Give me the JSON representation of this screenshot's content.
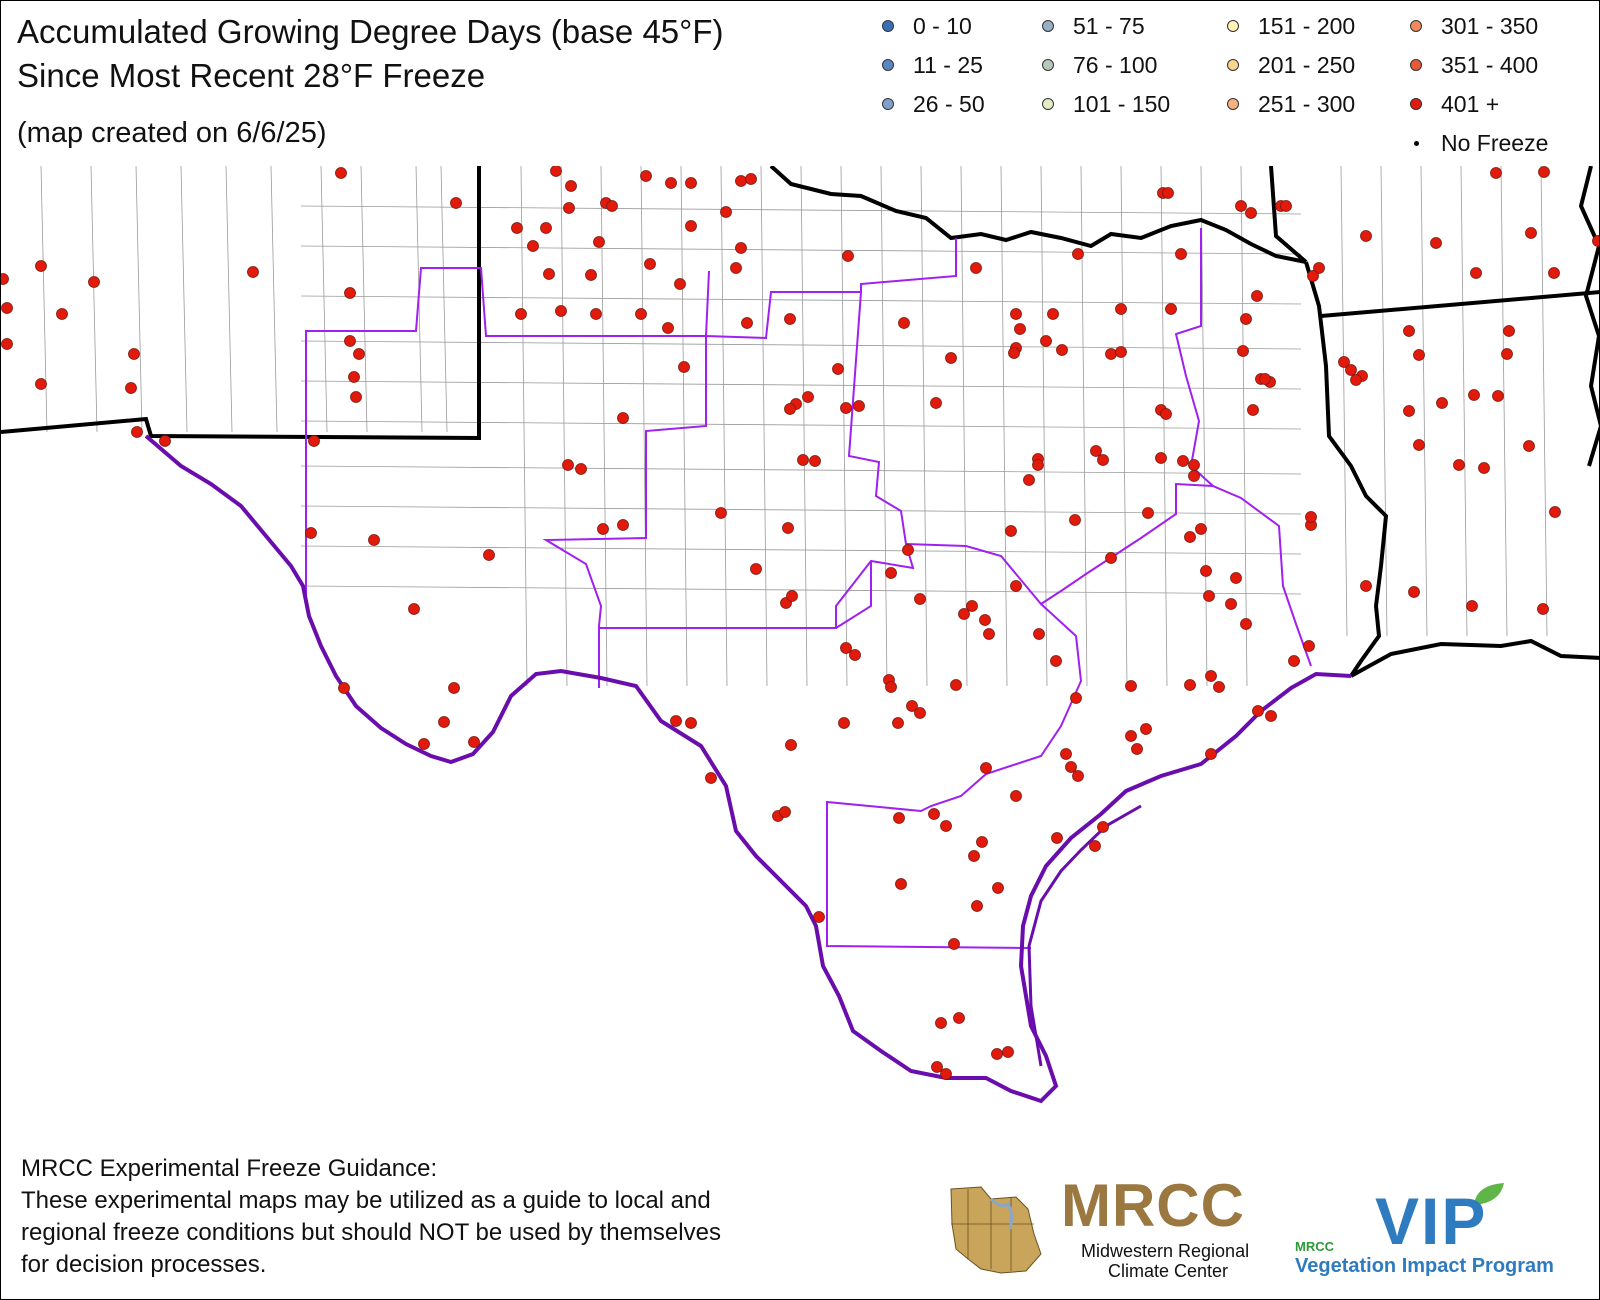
{
  "title": {
    "line1": "Accumulated Growing Degree Days (base 45°F)",
    "line2": "Since Most Recent 28°F Freeze",
    "created": "(map created on 6/6/25)"
  },
  "legend": [
    {
      "label": "0 - 10",
      "color": "#3a6fb5"
    },
    {
      "label": "11 - 25",
      "color": "#5a86c3"
    },
    {
      "label": "26 - 50",
      "color": "#7f9fcd"
    },
    {
      "label": "51 - 75",
      "color": "#98aec3"
    },
    {
      "label": "76 - 100",
      "color": "#b7c8b8"
    },
    {
      "label": "101 - 150",
      "color": "#e2ecc7"
    },
    {
      "label": "151 - 200",
      "color": "#fff3b8"
    },
    {
      "label": "201 - 250",
      "color": "#fbd48e"
    },
    {
      "label": "251 - 300",
      "color": "#f7b17c"
    },
    {
      "label": "301 - 350",
      "color": "#f08a5d"
    },
    {
      "label": "351 - 400",
      "color": "#e65a36"
    },
    {
      "label": "401 +",
      "color": "#e11a0c"
    },
    {
      "label": "No Freeze",
      "color": "#000000"
    }
  ],
  "map": {
    "station_class": "401 +",
    "station_color": "#e11a0c",
    "state_border_color": "#000000",
    "division_color": "#a020f0",
    "coast_color": "#6a0dad"
  },
  "disclaimer": {
    "heading": "MRCC Experimental Freeze Guidance:",
    "lines": [
      "These experimental maps may be utilized as a guide to local and",
      "regional freeze conditions but should NOT be used by themselves",
      "for decision processes."
    ]
  },
  "logos": {
    "mrcc_abbr": "MRCC",
    "mrcc_name_line1": "Midwestern Regional",
    "mrcc_name_line2": "Climate Center",
    "vip_mark": "VIP",
    "vip_small": "MRCC",
    "vip_text": "Vegetation Impact Program"
  }
}
